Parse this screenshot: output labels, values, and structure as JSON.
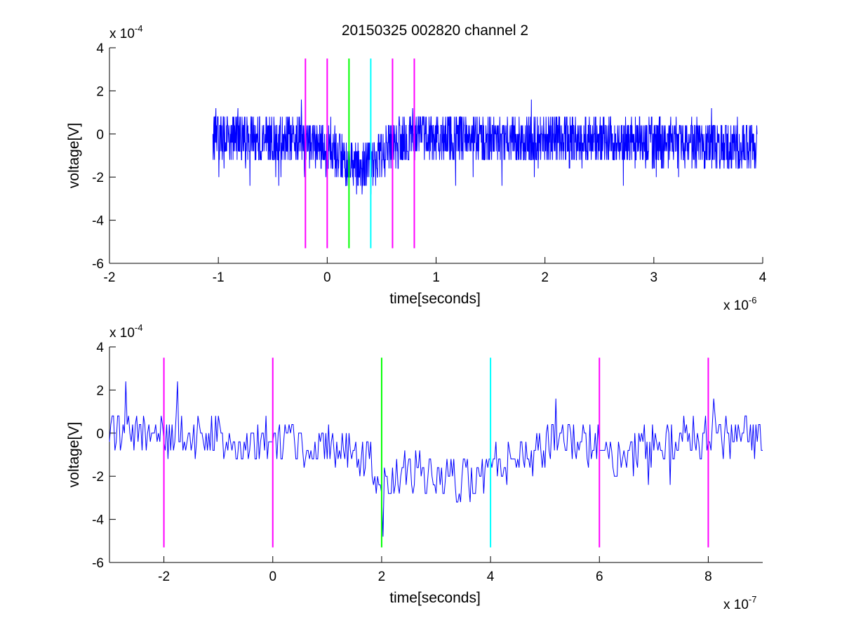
{
  "chart_data": [
    {
      "type": "line",
      "title": "20150325 002820 channel 2",
      "xlabel": "time[seconds]",
      "ylabel": "voltage[V]",
      "x_multiplier": "x 10",
      "x_exponent": "-6",
      "y_multiplier": "x 10",
      "y_exponent": "-4",
      "xlim": [
        -2,
        4
      ],
      "ylim": [
        -6,
        4
      ],
      "xticks": [
        "-2",
        "-1",
        "0",
        "1",
        "2",
        "3",
        "4"
      ],
      "yticks": [
        "-6",
        "-4",
        "-2",
        "0",
        "2",
        "4"
      ],
      "grid": false,
      "signal": {
        "name": "",
        "color": "#0000ff",
        "x_start": -1.05,
        "x_end": 3.95,
        "quantum": 0.8,
        "sample_step": 0.0025,
        "baseline": [
          [
            -1.05,
            0.0
          ],
          [
            -0.3,
            -0.3
          ],
          [
            0.1,
            -0.9
          ],
          [
            0.3,
            -1.7
          ],
          [
            0.4,
            -1.5
          ],
          [
            0.55,
            -0.6
          ],
          [
            0.8,
            -0.1
          ],
          [
            1.5,
            -0.2
          ],
          [
            2.5,
            -0.3
          ],
          [
            3.5,
            -0.5
          ],
          [
            3.95,
            -0.7
          ]
        ],
        "noise_amplitude": 1.1
      },
      "vlines": [
        {
          "x": -0.2,
          "y0": -5.3,
          "y1": 3.5,
          "color": "#ff00ff"
        },
        {
          "x": 0.0,
          "y0": -5.3,
          "y1": 3.5,
          "color": "#ff00ff"
        },
        {
          "x": 0.2,
          "y0": -5.3,
          "y1": 3.5,
          "color": "#00ff00"
        },
        {
          "x": 0.4,
          "y0": -5.3,
          "y1": 3.5,
          "color": "#00ffff"
        },
        {
          "x": 0.6,
          "y0": -5.3,
          "y1": 3.5,
          "color": "#ff00ff"
        },
        {
          "x": 0.8,
          "y0": -5.3,
          "y1": 3.5,
          "color": "#ff00ff"
        }
      ]
    },
    {
      "type": "line",
      "title": "",
      "xlabel": "time[seconds]",
      "ylabel": "voltage[V]",
      "x_multiplier": "x 10",
      "x_exponent": "-7",
      "y_multiplier": "x 10",
      "y_exponent": "-4",
      "xlim": [
        -3,
        9
      ],
      "ylim": [
        -6,
        4
      ],
      "xticks": [
        "-2",
        "0",
        "2",
        "4",
        "6",
        "8"
      ],
      "yticks": [
        "-6",
        "-4",
        "-2",
        "0",
        "2",
        "4"
      ],
      "grid": false,
      "signal": {
        "name": "",
        "color": "#0000ff",
        "x_start": -3,
        "x_end": 9,
        "quantum": 0.8,
        "sample_step": 0.025,
        "baseline": [
          [
            -3,
            0.0
          ],
          [
            -1,
            -0.2
          ],
          [
            0,
            -0.3
          ],
          [
            1,
            -0.6
          ],
          [
            1.8,
            -1.2
          ],
          [
            2.0,
            -2.2
          ],
          [
            2.5,
            -1.6
          ],
          [
            3,
            -2.0
          ],
          [
            3.5,
            -2.2
          ],
          [
            4,
            -1.9
          ],
          [
            4.5,
            -1.2
          ],
          [
            5,
            -0.6
          ],
          [
            6,
            -0.6
          ],
          [
            6.3,
            -1.5
          ],
          [
            7,
            -0.4
          ],
          [
            8,
            -0.2
          ],
          [
            9,
            -0.3
          ]
        ],
        "noise_amplitude": 1.0,
        "spikes": [
          [
            2.02,
            -4.8
          ],
          [
            1.95,
            -2.6
          ],
          [
            -1.75,
            2.4
          ],
          [
            -2.7,
            2.4
          ],
          [
            5.2,
            1.6
          ],
          [
            8.1,
            1.6
          ]
        ]
      },
      "vlines": [
        {
          "x": -2,
          "y0": -5.3,
          "y1": 3.5,
          "color": "#ff00ff"
        },
        {
          "x": 0,
          "y0": -5.3,
          "y1": 3.5,
          "color": "#ff00ff"
        },
        {
          "x": 2,
          "y0": -5.3,
          "y1": 3.5,
          "color": "#00ff00"
        },
        {
          "x": 4,
          "y0": -5.3,
          "y1": 3.5,
          "color": "#00ffff"
        },
        {
          "x": 6,
          "y0": -5.3,
          "y1": 3.5,
          "color": "#ff00ff"
        },
        {
          "x": 8,
          "y0": -5.3,
          "y1": 3.5,
          "color": "#ff00ff"
        }
      ]
    }
  ]
}
